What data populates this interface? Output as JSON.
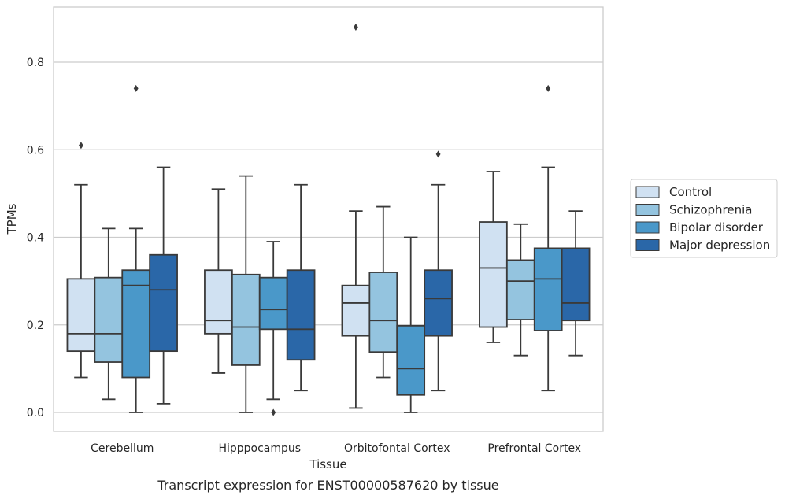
{
  "chart_data": {
    "type": "box",
    "xlabel": "Tissue",
    "ylabel": "TPMs",
    "caption": "Transcript expression for ENST00000587620 by tissue",
    "ylim": [
      -0.04,
      0.93
    ],
    "yticks": [
      0.0,
      0.2,
      0.4,
      0.6,
      0.8
    ],
    "ytick_labels": [
      "0.0",
      "0.2",
      "0.4",
      "0.6",
      "0.8"
    ],
    "grid": "horizontal",
    "legend_position": "right",
    "categories": [
      "Cerebellum",
      "Hipppocampus",
      "Orbitofontal Cortex",
      "Prefrontal Cortex"
    ],
    "series": [
      {
        "name": "Control",
        "color": "#d0e1f2",
        "boxes": [
          {
            "whislo": 0.08,
            "q1": 0.14,
            "med": 0.18,
            "q3": 0.305,
            "whishi": 0.52,
            "fliers": [
              0.61
            ]
          },
          {
            "whislo": 0.09,
            "q1": 0.18,
            "med": 0.21,
            "q3": 0.325,
            "whishi": 0.51,
            "fliers": []
          },
          {
            "whislo": 0.01,
            "q1": 0.175,
            "med": 0.25,
            "q3": 0.29,
            "whishi": 0.46,
            "fliers": [
              0.88
            ]
          },
          {
            "whislo": 0.16,
            "q1": 0.195,
            "med": 0.33,
            "q3": 0.435,
            "whishi": 0.55,
            "fliers": []
          }
        ]
      },
      {
        "name": "Schizophrenia",
        "color": "#94c4df",
        "boxes": [
          {
            "whislo": 0.03,
            "q1": 0.115,
            "med": 0.18,
            "q3": 0.308,
            "whishi": 0.42,
            "fliers": []
          },
          {
            "whislo": 0.0,
            "q1": 0.108,
            "med": 0.195,
            "q3": 0.315,
            "whishi": 0.54,
            "fliers": []
          },
          {
            "whislo": 0.08,
            "q1": 0.138,
            "med": 0.21,
            "q3": 0.32,
            "whishi": 0.47,
            "fliers": []
          },
          {
            "whislo": 0.13,
            "q1": 0.212,
            "med": 0.3,
            "q3": 0.348,
            "whishi": 0.43,
            "fliers": []
          }
        ]
      },
      {
        "name": "Bipolar disorder",
        "color": "#4a98c9",
        "boxes": [
          {
            "whislo": 0.0,
            "q1": 0.08,
            "med": 0.29,
            "q3": 0.325,
            "whishi": 0.42,
            "fliers": [
              0.74
            ]
          },
          {
            "whislo": 0.03,
            "q1": 0.19,
            "med": 0.235,
            "q3": 0.308,
            "whishi": 0.39,
            "fliers": [
              0.0
            ]
          },
          {
            "whislo": 0.0,
            "q1": 0.04,
            "med": 0.1,
            "q3": 0.198,
            "whishi": 0.4,
            "fliers": []
          },
          {
            "whislo": 0.05,
            "q1": 0.187,
            "med": 0.305,
            "q3": 0.375,
            "whishi": 0.56,
            "fliers": [
              0.74
            ]
          }
        ]
      },
      {
        "name": "Major depression",
        "color": "#2a67a8",
        "boxes": [
          {
            "whislo": 0.02,
            "q1": 0.14,
            "med": 0.28,
            "q3": 0.36,
            "whishi": 0.56,
            "fliers": []
          },
          {
            "whislo": 0.05,
            "q1": 0.12,
            "med": 0.19,
            "q3": 0.325,
            "whishi": 0.52,
            "fliers": []
          },
          {
            "whislo": 0.05,
            "q1": 0.175,
            "med": 0.26,
            "q3": 0.325,
            "whishi": 0.52,
            "fliers": [
              0.59
            ]
          },
          {
            "whislo": 0.13,
            "q1": 0.21,
            "med": 0.25,
            "q3": 0.375,
            "whishi": 0.46,
            "fliers": []
          }
        ]
      }
    ],
    "colors": {
      "line": "#3a3a3a",
      "grid": "#cccccc",
      "frame": "#cccccc"
    }
  }
}
